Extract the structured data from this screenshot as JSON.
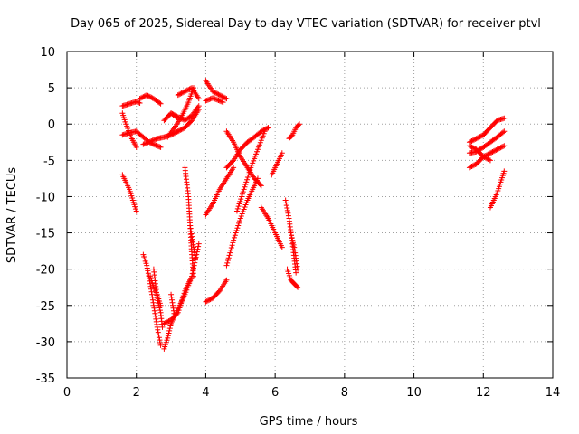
{
  "chart_data": {
    "type": "scatter",
    "title": "Day 065 of 2025, Sidereal Day-to-day VTEC variation (SDTVAR) for receiver ptvl",
    "xlabel": "GPS time / hours",
    "ylabel": "SDTVAR / TECUs",
    "xlim": [
      0,
      14
    ],
    "ylim": [
      -35,
      10
    ],
    "xticks": [
      0,
      2,
      4,
      6,
      8,
      10,
      12,
      14
    ],
    "yticks": [
      10,
      5,
      0,
      -5,
      -10,
      -15,
      -20,
      -25,
      -30,
      -35
    ],
    "grid": true,
    "marker": "plus",
    "color": "#ff0000",
    "tracks": [
      {
        "x": [
          1.6,
          1.8,
          2.0,
          2.1
        ],
        "y": [
          2.5,
          2.8,
          3.1,
          2.9
        ]
      },
      {
        "x": [
          1.6,
          1.7,
          1.85,
          2.0
        ],
        "y": [
          1.5,
          0.0,
          -1.8,
          -3.2
        ]
      },
      {
        "x": [
          1.6,
          1.8,
          2.0,
          2.2,
          2.4,
          2.6,
          2.7
        ],
        "y": [
          -1.5,
          -1.2,
          -1.0,
          -1.8,
          -2.6,
          -3.0,
          -3.2
        ]
      },
      {
        "x": [
          2.1,
          2.3,
          2.5,
          2.7
        ],
        "y": [
          3.5,
          4.0,
          3.5,
          2.8
        ]
      },
      {
        "x": [
          2.2,
          2.4,
          2.6,
          2.8,
          3.0,
          3.2
        ],
        "y": [
          -2.8,
          -2.4,
          -2.0,
          -1.8,
          -1.5,
          -1.0
        ]
      },
      {
        "x": [
          3.2,
          3.4,
          3.6,
          3.8
        ],
        "y": [
          -1.0,
          -0.5,
          0.5,
          2.0
        ]
      },
      {
        "x": [
          2.8,
          3.0,
          3.2
        ],
        "y": [
          0.5,
          1.5,
          0.8
        ]
      },
      {
        "x": [
          2.9,
          3.1,
          3.3,
          3.5,
          3.65
        ],
        "y": [
          -1.8,
          -0.5,
          1.0,
          3.0,
          5.0
        ]
      },
      {
        "x": [
          3.0,
          3.2,
          3.4,
          3.6,
          3.8
        ],
        "y": [
          1.5,
          1.0,
          0.5,
          1.2,
          2.5
        ]
      },
      {
        "x": [
          3.2,
          3.4,
          3.6,
          3.8
        ],
        "y": [
          4.0,
          4.5,
          5.0,
          3.5
        ]
      },
      {
        "x": [
          4.0,
          4.2,
          4.4,
          4.6
        ],
        "y": [
          6.0,
          4.5,
          4.0,
          3.5
        ]
      },
      {
        "x": [
          4.0,
          4.2,
          4.5
        ],
        "y": [
          3.2,
          3.6,
          3.0
        ]
      },
      {
        "x": [
          4.6,
          4.8,
          5.0,
          5.2,
          5.4,
          5.6
        ],
        "y": [
          -1.0,
          -2.5,
          -4.5,
          -6.0,
          -7.5,
          -8.5
        ]
      },
      {
        "x": [
          4.6,
          4.8,
          5.0,
          5.2,
          5.4,
          5.6,
          5.8
        ],
        "y": [
          -6.0,
          -5.0,
          -3.5,
          -2.5,
          -1.8,
          -1.0,
          -0.5
        ]
      },
      {
        "x": [
          1.6,
          1.7,
          1.8,
          1.9,
          2.0
        ],
        "y": [
          -7.0,
          -8.0,
          -9.0,
          -10.5,
          -12.0
        ]
      },
      {
        "x": [
          2.2,
          2.3,
          2.4,
          2.5,
          2.6,
          2.7
        ],
        "y": [
          -18.0,
          -19.5,
          -22.0,
          -25.0,
          -28.0,
          -30.5
        ]
      },
      {
        "x": [
          2.5,
          2.55,
          2.6,
          2.7,
          2.75
        ],
        "y": [
          -20.0,
          -22.0,
          -24.0,
          -26.0,
          -28.0
        ]
      },
      {
        "x": [
          2.4,
          2.5,
          2.6,
          2.7
        ],
        "y": [
          -21.0,
          -22.5,
          -23.5,
          -25.0
        ]
      },
      {
        "x": [
          2.8,
          2.9,
          3.0,
          3.2,
          3.4,
          3.6,
          3.8
        ],
        "y": [
          -31.0,
          -29.5,
          -27.5,
          -25.5,
          -23.5,
          -21.0,
          -16.5
        ]
      },
      {
        "x": [
          2.8,
          3.0,
          3.2,
          3.4,
          3.6
        ],
        "y": [
          -27.5,
          -27.0,
          -26.0,
          -23.0,
          -21.0
        ]
      },
      {
        "x": [
          3.4,
          3.5,
          3.55,
          3.6,
          3.65
        ],
        "y": [
          -6.0,
          -10.0,
          -14.0,
          -18.0,
          -21.0
        ]
      },
      {
        "x": [
          3.55,
          3.6,
          3.65,
          3.7
        ],
        "y": [
          -14.0,
          -15.5,
          -17.0,
          -18.5
        ]
      },
      {
        "x": [
          3.0,
          3.05,
          3.1
        ],
        "y": [
          -23.5,
          -25.0,
          -26.5
        ]
      },
      {
        "x": [
          4.0,
          4.2,
          4.4,
          4.6
        ],
        "y": [
          -24.5,
          -24.0,
          -23.0,
          -21.5
        ]
      },
      {
        "x": [
          4.0,
          4.2,
          4.4,
          4.6,
          4.8
        ],
        "y": [
          -12.5,
          -11.0,
          -9.0,
          -7.5,
          -6.0
        ]
      },
      {
        "x": [
          4.6,
          4.8,
          5.0,
          5.2,
          5.4,
          5.5
        ],
        "y": [
          -19.5,
          -16.0,
          -13.0,
          -10.5,
          -8.5,
          -7.5
        ]
      },
      {
        "x": [
          4.9,
          5.1,
          5.3,
          5.5,
          5.7
        ],
        "y": [
          -12.0,
          -9.0,
          -6.0,
          -3.5,
          -1.0
        ]
      },
      {
        "x": [
          5.6,
          5.8,
          6.0,
          6.2
        ],
        "y": [
          -11.5,
          -13.0,
          -15.0,
          -17.0
        ]
      },
      {
        "x": [
          5.9,
          6.0,
          6.1,
          6.2
        ],
        "y": [
          -7.0,
          -6.0,
          -5.0,
          -4.0
        ]
      },
      {
        "x": [
          6.3,
          6.4,
          6.5,
          6.6
        ],
        "y": [
          -10.5,
          -13.0,
          -16.5,
          -20.5
        ]
      },
      {
        "x": [
          6.35,
          6.45,
          6.55,
          6.65
        ],
        "y": [
          -20.0,
          -21.5,
          -22.0,
          -22.5
        ]
      },
      {
        "x": [
          6.45,
          6.55,
          6.6,
          6.65
        ],
        "y": [
          -15.0,
          -17.0,
          -18.5,
          -20.0
        ]
      },
      {
        "x": [
          6.4,
          6.5,
          6.6,
          6.7
        ],
        "y": [
          -2.0,
          -1.5,
          -0.5,
          0.0
        ]
      },
      {
        "x": [
          5.8
        ],
        "y": [
          -0.5
        ]
      },
      {
        "x": [
          11.6,
          11.8,
          12.0,
          12.2,
          12.4,
          12.6
        ],
        "y": [
          -2.5,
          -2.0,
          -1.5,
          -0.5,
          0.5,
          0.8
        ]
      },
      {
        "x": [
          11.6,
          11.8,
          12.0,
          12.2,
          12.4,
          12.6
        ],
        "y": [
          -6.0,
          -5.5,
          -4.5,
          -4.0,
          -3.5,
          -3.0
        ]
      },
      {
        "x": [
          11.6,
          11.8,
          12.0,
          12.2,
          12.4,
          12.6
        ],
        "y": [
          -4.0,
          -3.8,
          -3.2,
          -2.5,
          -1.8,
          -1.0
        ]
      },
      {
        "x": [
          11.6,
          11.8,
          12.0,
          12.2
        ],
        "y": [
          -3.0,
          -3.5,
          -4.5,
          -5.0
        ]
      },
      {
        "x": [
          12.2,
          12.3,
          12.4,
          12.5,
          12.6
        ],
        "y": [
          -11.5,
          -10.5,
          -9.5,
          -8.0,
          -6.5
        ]
      }
    ]
  }
}
